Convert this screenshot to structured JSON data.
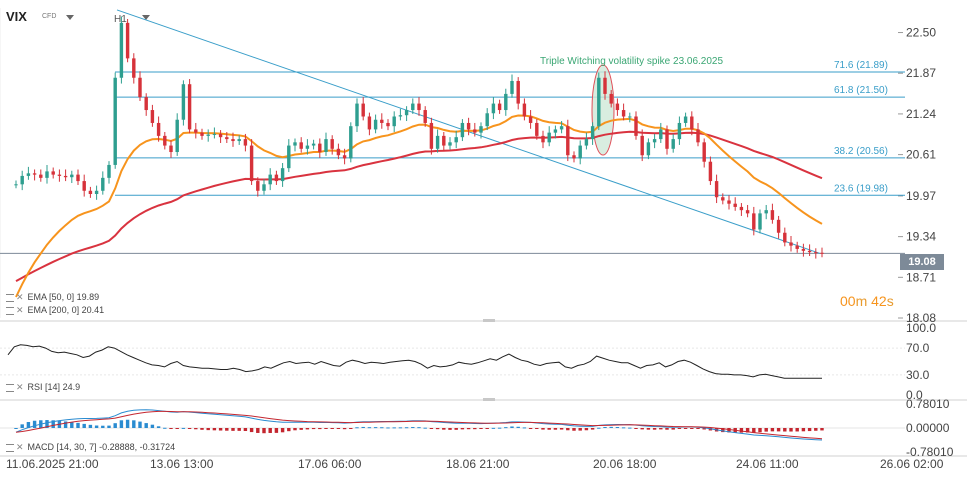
{
  "header": {
    "symbol": "VIX",
    "symbol_type": "CFD",
    "timeframe": "H1"
  },
  "price_tag": "19.08",
  "countdown": {
    "minutes": "00",
    "m_label": "m",
    "seconds": "42",
    "s_label": "s"
  },
  "annotation": "Triple Witching volatility spike 23.06.2025",
  "legends": {
    "ema50": "EMA [50, 0]  19.89",
    "ema200": "EMA [200, 0]  20.41",
    "rsi": "RSI [14]  24.9",
    "macd": "MACD [14, 30, 7]  -0.28888,  -0.31724"
  },
  "colors": {
    "up": "#2e9e8f",
    "down": "#d6323a",
    "ema50": "#f7941d",
    "ema200": "#d9333f",
    "fib": "#3a9ec9",
    "trend": "#3a9ec9",
    "ellipse_fill": "#cfe8d8",
    "ellipse_stroke": "#e0505a"
  },
  "chart_data": [
    {
      "type": "candlestick",
      "title": "VIX",
      "y_ticks": [
        "22.50",
        "21.87",
        "21.24",
        "20.61",
        "19.97",
        "19.34",
        "18.71",
        "18.08"
      ],
      "ylim": [
        18.08,
        22.88
      ],
      "x_ticks": [
        "11.06.2025  21:00",
        "13.06  13:00",
        "17.06  06:00",
        "18.06  21:00",
        "20.06  18:00",
        "24.06  11:00",
        "26.06  02:00"
      ],
      "fib_levels": [
        {
          "label": "71.6 (21.89)",
          "value": 21.89
        },
        {
          "label": "61.8 (21.50)",
          "value": 21.5
        },
        {
          "label": "38.2 (20.56)",
          "value": 20.56
        },
        {
          "label": "23.6 (19.98)",
          "value": 19.98
        }
      ],
      "last_price": 19.08,
      "close_series": [
        20.15,
        20.28,
        20.32,
        20.3,
        20.25,
        20.35,
        20.3,
        20.28,
        20.26,
        20.3,
        20.2,
        20.05,
        20.0,
        20.05,
        20.25,
        20.45,
        21.8,
        22.65,
        22.1,
        21.8,
        21.5,
        21.3,
        21.1,
        20.9,
        20.75,
        20.65,
        21.15,
        21.7,
        21.0,
        20.95,
        20.9,
        20.92,
        20.93,
        20.88,
        20.85,
        20.82,
        20.85,
        20.75,
        20.2,
        20.05,
        20.15,
        20.3,
        20.2,
        20.4,
        20.75,
        20.8,
        20.7,
        20.75,
        20.78,
        20.65,
        20.85,
        20.7,
        20.6,
        20.55,
        21.05,
        21.4,
        21.2,
        21.0,
        21.15,
        21.1,
        21.05,
        21.2,
        21.22,
        21.3,
        21.4,
        21.3,
        21.1,
        20.7,
        20.9,
        20.75,
        20.8,
        20.88,
        21.1,
        21.0,
        20.95,
        21.05,
        21.25,
        21.4,
        21.3,
        21.55,
        21.75,
        21.4,
        21.2,
        21.1,
        20.9,
        20.8,
        20.95,
        21.0,
        21.05,
        20.6,
        20.55,
        20.75,
        20.85,
        21.05,
        21.8,
        21.55,
        21.4,
        21.3,
        21.2,
        21.2,
        20.9,
        20.6,
        20.8,
        20.85,
        21.0,
        20.7,
        20.85,
        21.1,
        21.2,
        21.0,
        20.8,
        20.5,
        20.2,
        19.95,
        19.9,
        19.85,
        19.8,
        19.75,
        19.7,
        19.45,
        19.7,
        19.75,
        19.6,
        19.4,
        19.25,
        19.2,
        19.15,
        19.12,
        19.1,
        19.09,
        19.08
      ],
      "ema50_last": 19.89,
      "ema200_last": 20.41
    },
    {
      "type": "line",
      "title": "RSI [14]",
      "y_ticks": [
        "100.0",
        "70.0",
        "30.0",
        "0.0"
      ],
      "ylim": [
        0,
        100
      ],
      "values": [
        60,
        72,
        75,
        74,
        72,
        73,
        70,
        65,
        63,
        64,
        62,
        60,
        56,
        58,
        64,
        67,
        72,
        70,
        65,
        60,
        56,
        52,
        48,
        45,
        44,
        42,
        47,
        50,
        44,
        42,
        41,
        40,
        40,
        39,
        38,
        38,
        40,
        38,
        35,
        36,
        38,
        42,
        40,
        44,
        48,
        50,
        47,
        48,
        49,
        46,
        50,
        47,
        44,
        43,
        49,
        52,
        50,
        47,
        49,
        48,
        47,
        49,
        50,
        51,
        52,
        50,
        46,
        40,
        44,
        42,
        43,
        45,
        49,
        47,
        46,
        48,
        51,
        54,
        52,
        57,
        61,
        56,
        52,
        50,
        46,
        44,
        47,
        48,
        49,
        42,
        40,
        44,
        46,
        50,
        58,
        55,
        52,
        50,
        48,
        48,
        44,
        40,
        44,
        45,
        48,
        42,
        45,
        50,
        52,
        49,
        44,
        39,
        35,
        32,
        31,
        31,
        30,
        30,
        29,
        27,
        30,
        31,
        29,
        27,
        25,
        25,
        25,
        24.9,
        24.9,
        24.9,
        24.9
      ],
      "last": 24.9
    },
    {
      "type": "bar+line",
      "title": "MACD [14, 30, 7]",
      "y_ticks": [
        "0.78010",
        "0.00000",
        "-0.78010"
      ],
      "ylim": [
        -0.7801,
        0.7801
      ],
      "macd_last": -0.28888,
      "signal_last": -0.31724
    }
  ]
}
